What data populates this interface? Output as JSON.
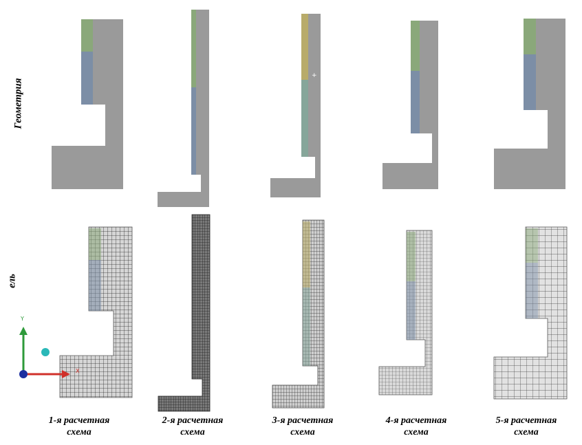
{
  "row_labels": {
    "geometry": "Геометрия",
    "model": "ель"
  },
  "axes": {
    "y": "Y",
    "x": "X"
  },
  "schemes": [
    {
      "line1": "1-я расчетная",
      "line2": "схема"
    },
    {
      "line1": "2-я расчетная",
      "line2": "схема"
    },
    {
      "line1": "3-я расчетная",
      "line2": "схема"
    },
    {
      "line1": "4-я расчетная",
      "line2": "схема"
    },
    {
      "line1": "5-я расчетная",
      "line2": "схема"
    }
  ],
  "colors": {
    "concrete": "#9a9a9a",
    "zone_green": "#8aa87a",
    "zone_blue": "#7c8ea6",
    "zone_yellow": "#b8ab6a",
    "zone_teal": "#86a69a",
    "mesh_line": "#2a2a2a",
    "axis_y": "#2e9a3a",
    "axis_x": "#d0302a",
    "axis_origin": "#1c2fa0",
    "axis_ball": "#2ab8b8"
  }
}
